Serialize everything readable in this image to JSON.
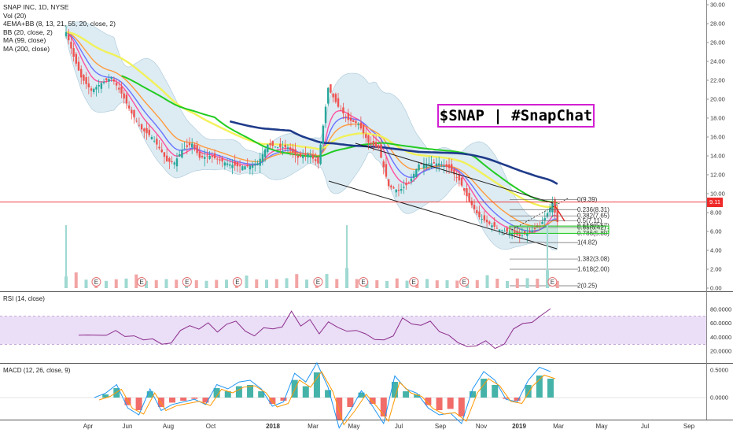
{
  "legend": {
    "symbol": "SNAP INC, 1D, NYSE",
    "vol": "Vol (20)",
    "ema_bb": "4EMA+BB (8, 13, 21, 55, 20, close, 2)",
    "bb": "BB (20, close, 2)",
    "ma99": "MA (99, close)",
    "ma200": "MA (200, close)"
  },
  "annotation_title": "$SNAP | #SnapChat",
  "last_price_label": "9.11",
  "rsi_label": "RSI (14, close)",
  "macd_label": "MACD (12, 26, close, 9)",
  "earnings_marker": "E",
  "colors": {
    "up": "#26a69a",
    "down": "#ef5350",
    "ma200": "#1f3b8a",
    "ma99": "#22cc22",
    "rsi": "#8a2d8a",
    "rsi_band": "#e6d6f5",
    "fib_box": "#22cc22",
    "annotation_border": "#d21fd2",
    "last_price": "#ef2a2a"
  },
  "chart_data": [
    {
      "type": "candlestick",
      "title": "SNAP INC, 1D, NYSE",
      "x_ticks": [
        "Apr",
        "Jun",
        "Aug",
        "Oct",
        "2018",
        "Mar",
        "May",
        "Jul",
        "Sep",
        "Nov",
        "2019",
        "Mar",
        "May",
        "Jul",
        "Sep"
      ],
      "y_ticks": [
        "30.00",
        "28.00",
        "26.00",
        "24.00",
        "22.00",
        "20.00",
        "18.00",
        "16.00",
        "14.00",
        "12.00",
        "10.00",
        "8.00",
        "6.00",
        "4.00",
        "2.00",
        "0.00"
      ],
      "ylim": [
        0,
        30
      ],
      "last_price": 9.11,
      "price_path": [
        [
          0,
          27.1
        ],
        [
          3,
          24.5
        ],
        [
          6,
          22.3
        ],
        [
          10,
          20.9
        ],
        [
          14,
          21.7
        ],
        [
          18,
          22.3
        ],
        [
          22,
          20.6
        ],
        [
          26,
          18.5
        ],
        [
          30,
          16.8
        ],
        [
          34,
          16.0
        ],
        [
          38,
          14.4
        ],
        [
          40,
          13.4
        ],
        [
          43,
          13.3
        ],
        [
          46,
          14.6
        ],
        [
          50,
          15.3
        ],
        [
          53,
          13.8
        ],
        [
          57,
          14.0
        ],
        [
          61,
          13.5
        ],
        [
          65,
          13.1
        ],
        [
          68,
          12.9
        ],
        [
          72,
          12.9
        ],
        [
          76,
          13.2
        ],
        [
          80,
          15.2
        ],
        [
          84,
          14.9
        ],
        [
          88,
          14.9
        ],
        [
          92,
          13.8
        ],
        [
          96,
          14.2
        ],
        [
          100,
          13.2
        ],
        [
          104,
          21.2
        ],
        [
          108,
          19.2
        ],
        [
          112,
          17.8
        ],
        [
          116,
          17.4
        ],
        [
          120,
          15.4
        ],
        [
          124,
          14.8
        ],
        [
          128,
          10.8
        ],
        [
          132,
          10.3
        ],
        [
          136,
          11.1
        ],
        [
          140,
          13.1
        ],
        [
          144,
          13.2
        ],
        [
          148,
          13.2
        ],
        [
          152,
          12.7
        ],
        [
          156,
          11.4
        ],
        [
          160,
          9.2
        ],
        [
          164,
          7.5
        ],
        [
          168,
          6.8
        ],
        [
          172,
          6.2
        ],
        [
          176,
          5.9
        ],
        [
          180,
          5.5
        ],
        [
          184,
          5.9
        ],
        [
          188,
          6.6
        ],
        [
          190,
          7.4
        ],
        [
          193,
          9.0
        ],
        [
          195,
          7.0
        ]
      ],
      "volume": [
        2,
        3,
        1,
        1,
        1,
        1,
        1,
        2,
        1,
        1,
        1,
        1,
        1,
        1,
        1,
        1,
        1,
        1,
        2,
        1,
        1,
        1,
        1,
        2,
        1,
        1,
        2,
        1,
        4,
        1,
        1,
        1,
        1,
        1,
        1,
        1,
        1,
        1,
        1,
        1,
        1,
        1,
        2,
        1,
        1,
        1,
        1,
        1,
        3,
        1
      ],
      "fib_levels": [
        {
          "ratio": "0",
          "price": "9.39"
        },
        {
          "ratio": "0.236",
          "price": "8.31"
        },
        {
          "ratio": "0.382",
          "price": "7.65"
        },
        {
          "ratio": "0.5",
          "price": "7.11"
        },
        {
          "ratio": "0.618",
          "price": "6.57"
        },
        {
          "ratio": "0.65",
          "price": "6.42"
        },
        {
          "ratio": "0.786",
          "price": "5.80"
        },
        {
          "ratio": "1",
          "price": "4.82"
        },
        {
          "ratio": "1.382",
          "price": "3.08"
        },
        {
          "ratio": "1.618",
          "price": "2.00"
        },
        {
          "ratio": "2",
          "price": "0.25"
        }
      ],
      "earnings_dates": [
        "Mar",
        "May",
        "Aug",
        "Nov",
        "Feb",
        "May",
        "Aug",
        "Oct",
        "Feb"
      ]
    },
    {
      "type": "line",
      "name": "RSI (14, close)",
      "y_ticks": [
        "80.0000",
        "60.0000",
        "40.0000",
        "20.0000"
      ],
      "ylim": [
        0,
        100
      ],
      "band": [
        30,
        70
      ],
      "values": [
        45,
        46,
        40,
        43,
        51,
        41,
        40,
        35,
        36,
        33,
        34,
        49,
        55,
        54,
        62,
        48,
        57,
        62,
        48,
        44,
        51,
        49,
        54,
        76,
        58,
        63,
        47,
        63,
        53,
        49,
        50,
        42,
        37,
        36,
        41,
        70,
        61,
        59,
        61,
        49,
        40,
        32,
        29,
        28,
        35,
        27,
        30,
        50,
        60,
        63,
        74,
        80
      ]
    },
    {
      "type": "bar",
      "name": "MACD (12, 26, close, 9)",
      "y_ticks": [
        "0.5000",
        "0.0000"
      ],
      "histogram": [
        0,
        0.05,
        0.15,
        -0.12,
        -0.2,
        0.1,
        -0.15,
        -0.08,
        -0.05,
        -0.02,
        -0.08,
        0.15,
        0.1,
        0.18,
        0.2,
        0.1,
        -0.1,
        -0.05,
        0.28,
        0.18,
        0.4,
        0.12,
        -0.35,
        -0.15,
        0.08,
        -0.1,
        -0.3,
        0.25,
        0.1,
        0.05,
        -0.12,
        -0.2,
        -0.18,
        -0.3,
        0.1,
        0.3,
        0.2,
        -0.02,
        -0.05,
        0.2,
        0.35,
        0.3
      ]
    }
  ]
}
